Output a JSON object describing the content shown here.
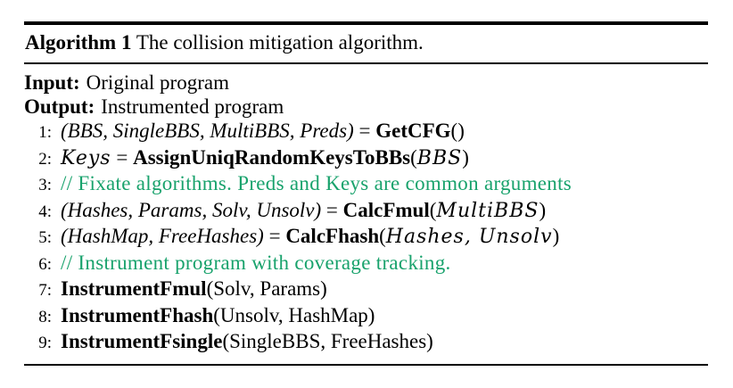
{
  "colors": {
    "background": "#ffffff",
    "text": "#000000",
    "rule": "#000000",
    "comment_green": "#18a26c"
  },
  "algorithm": {
    "header": {
      "label": "Algorithm 1",
      "title": "The collision mitigation algorithm."
    },
    "io": [
      {
        "label": "Input:",
        "text": "Original program"
      },
      {
        "label": "Output:",
        "text": "Instrumented program"
      }
    ],
    "lines": [
      {
        "num": "1:",
        "segments": [
          {
            "t": "(BBS, SingleBBS, MultiBBS, Preds)",
            "s": "it"
          },
          {
            "t": " = ",
            "s": "n"
          },
          {
            "t": "GetCFG",
            "s": "b"
          },
          {
            "t": "()",
            "s": "n"
          }
        ]
      },
      {
        "num": "2:",
        "segments": [
          {
            "t": "Keys",
            "s": "mathit"
          },
          {
            "t": " = ",
            "s": "n"
          },
          {
            "t": "AssignUniqRandomKeysToBBs",
            "s": "b"
          },
          {
            "t": "(",
            "s": "n"
          },
          {
            "t": "BBS",
            "s": "mathit"
          },
          {
            "t": ")",
            "s": "n"
          }
        ]
      },
      {
        "num": "3:",
        "segments": [
          {
            "t": "// Fixate algorithms. Preds and Keys are common arguments",
            "s": "c"
          }
        ]
      },
      {
        "num": "4:",
        "segments": [
          {
            "t": "(Hashes, Params, Solv, Unsolv)",
            "s": "it"
          },
          {
            "t": " = ",
            "s": "n"
          },
          {
            "t": "CalcFmul",
            "s": "b"
          },
          {
            "t": "(",
            "s": "n"
          },
          {
            "t": "MultiBBS",
            "s": "mathit"
          },
          {
            "t": ")",
            "s": "n"
          }
        ]
      },
      {
        "num": "5:",
        "segments": [
          {
            "t": "(HashMap, FreeHashes)",
            "s": "it"
          },
          {
            "t": " = ",
            "s": "n"
          },
          {
            "t": "CalcFhash",
            "s": "b"
          },
          {
            "t": "(",
            "s": "n"
          },
          {
            "t": "Hashes, Unsolv",
            "s": "mathit"
          },
          {
            "t": ")",
            "s": "n"
          }
        ]
      },
      {
        "num": "6:",
        "segments": [
          {
            "t": "// Instrument program with coverage tracking.",
            "s": "c"
          }
        ]
      },
      {
        "num": "7:",
        "segments": [
          {
            "t": "InstrumentFmul",
            "s": "b"
          },
          {
            "t": "(Solv, Params)",
            "s": "n"
          }
        ]
      },
      {
        "num": "8:",
        "segments": [
          {
            "t": "InstrumentFhash",
            "s": "b"
          },
          {
            "t": "(Unsolv, HashMap)",
            "s": "n"
          }
        ]
      },
      {
        "num": "9:",
        "segments": [
          {
            "t": "InstrumentFsingle",
            "s": "b"
          },
          {
            "t": "(SingleBBS, FreeHashes)",
            "s": "n"
          }
        ]
      }
    ]
  }
}
